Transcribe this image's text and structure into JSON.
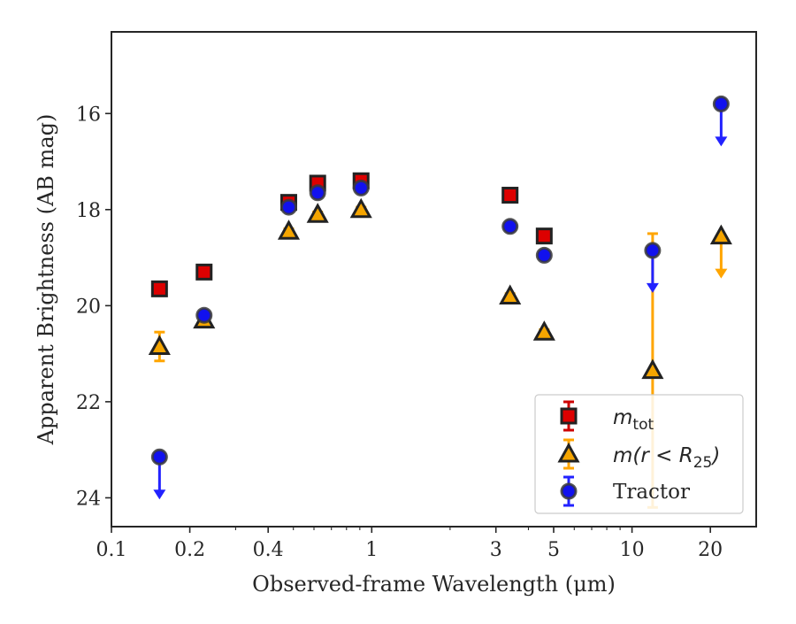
{
  "chart_data": {
    "type": "scatter",
    "xlabel": "Observed-frame Wavelength (μm)",
    "ylabel": "Apparent Brightness (AB mag)",
    "xscale": "log",
    "xlim": [
      0.1,
      30
    ],
    "ylim": [
      24.6,
      14.3
    ],
    "y_inverted": true,
    "grid": false,
    "legend_position": "lower right",
    "x_ticks": [
      0.1,
      0.2,
      0.4,
      1,
      3,
      5,
      10,
      20
    ],
    "x_tick_labels": [
      "0.1",
      "0.2",
      "0.4",
      "1",
      "3",
      "5",
      "10",
      "20"
    ],
    "y_ticks": [
      16,
      18,
      20,
      22,
      24
    ],
    "y_tick_labels": [
      "16",
      "18",
      "20",
      "22",
      "24"
    ],
    "series": [
      {
        "name": "m_tot",
        "marker": "square",
        "face_color": "#dd0000",
        "edge_color": "#222222",
        "errbar_color": "#cc0000",
        "points": [
          {
            "x": 0.153,
            "y": 19.65,
            "err": 0.05
          },
          {
            "x": 0.227,
            "y": 19.3,
            "err": 0.05
          },
          {
            "x": 0.48,
            "y": 17.85,
            "err": 0.05
          },
          {
            "x": 0.62,
            "y": 17.45,
            "err": 0.05
          },
          {
            "x": 0.91,
            "y": 17.4,
            "err": 0.05
          },
          {
            "x": 3.4,
            "y": 17.7,
            "err": 0.05
          },
          {
            "x": 4.6,
            "y": 18.55,
            "err": 0.05
          }
        ]
      },
      {
        "name": "m(r<R25)",
        "marker": "triangle",
        "face_color": "#f5a500",
        "edge_color": "#222222",
        "errbar_color": "#ffa500",
        "points": [
          {
            "x": 0.153,
            "y": 20.85,
            "err": 0.3
          },
          {
            "x": 0.227,
            "y": 20.3,
            "err": 0.05
          },
          {
            "x": 0.48,
            "y": 18.45,
            "err": 0.05
          },
          {
            "x": 0.62,
            "y": 18.1,
            "err": 0.05
          },
          {
            "x": 0.91,
            "y": 18.0,
            "err": 0.05
          },
          {
            "x": 3.4,
            "y": 19.8,
            "err": 0.05
          },
          {
            "x": 4.6,
            "y": 20.55,
            "err": 0.05
          },
          {
            "x": 12.0,
            "y": 21.35,
            "err_low": 2.85,
            "err_high": 2.85
          },
          {
            "x": 22.0,
            "y": 18.55,
            "upper_limit": true
          }
        ]
      },
      {
        "name": "Tractor",
        "marker": "circle",
        "face_color": "#1111ee",
        "edge_color": "#3a3a3a",
        "errbar_color": "#2222ff",
        "points": [
          {
            "x": 0.153,
            "y": 23.15,
            "upper_limit": true
          },
          {
            "x": 0.227,
            "y": 20.2,
            "err": 0.05
          },
          {
            "x": 0.48,
            "y": 17.95,
            "err": 0.05
          },
          {
            "x": 0.62,
            "y": 17.65,
            "err": 0.05
          },
          {
            "x": 0.91,
            "y": 17.55,
            "err": 0.05
          },
          {
            "x": 3.4,
            "y": 18.35,
            "err": 0.05
          },
          {
            "x": 4.6,
            "y": 18.95,
            "err": 0.05
          },
          {
            "x": 12.0,
            "y": 18.85,
            "upper_limit": true
          },
          {
            "x": 22.0,
            "y": 15.8,
            "upper_limit": true
          }
        ]
      }
    ],
    "legend_labels": {
      "m_tot_main": "m",
      "m_tot_sub": "tot",
      "m_r_prefix": "m(r < R",
      "m_r_sub": "25",
      "m_r_suffix": ")",
      "tractor": "Tractor"
    }
  }
}
